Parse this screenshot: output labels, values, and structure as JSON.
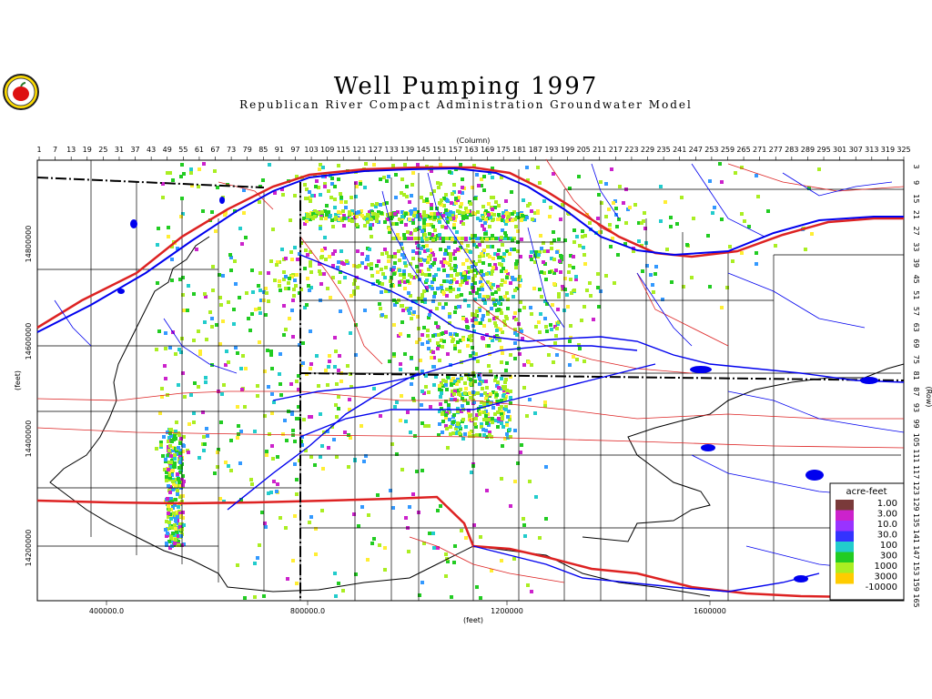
{
  "header": {
    "title": "Well Pumping 1997",
    "subtitle": "Republican River Compact Administration Groundwater Model"
  },
  "axes": {
    "column_title": "(Column)",
    "row_title": "(Row)",
    "x_unit": "(feet)",
    "y_unit": "(feet)",
    "columns": [
      "1",
      "7",
      "13",
      "19",
      "25",
      "31",
      "37",
      "43",
      "49",
      "55",
      "61",
      "67",
      "73",
      "79",
      "85",
      "91",
      "97",
      "103",
      "109",
      "115",
      "121",
      "127",
      "133",
      "139",
      "145",
      "151",
      "157",
      "163",
      "169",
      "175",
      "181",
      "187",
      "193",
      "199",
      "205",
      "211",
      "217",
      "223",
      "229",
      "235",
      "241",
      "247",
      "253",
      "259",
      "265",
      "271",
      "277",
      "283",
      "289",
      "295",
      "301",
      "307",
      "313",
      "319",
      "325"
    ],
    "rows": [
      "3",
      "9",
      "15",
      "21",
      "27",
      "33",
      "39",
      "45",
      "51",
      "57",
      "63",
      "69",
      "75",
      "81",
      "87",
      "93",
      "99",
      "105",
      "111",
      "117",
      "123",
      "129",
      "135",
      "141",
      "147",
      "153",
      "159",
      "165"
    ],
    "x_ticks": [
      "400000.0",
      "800000.0",
      "1200000",
      "1600000"
    ],
    "y_ticks": [
      "14800000",
      "14600000",
      "14400000",
      "14200000"
    ]
  },
  "legend": {
    "title": "acre-feet",
    "labels": [
      "1.00",
      "3.00",
      "10.0",
      "30.0",
      "100",
      "300",
      "1000",
      "3000",
      "-10000"
    ],
    "colors": [
      "#7a3a3a",
      "#cc22cc",
      "#9933ff",
      "#3333ff",
      "#22cccc",
      "#22cc22",
      "#aaee22",
      "#ffcc00",
      "#ff3300"
    ]
  },
  "colors": {
    "map_line": "#0000cc",
    "highway": "#dd2222",
    "boundary": "#000000",
    "river": "#0000ee"
  }
}
